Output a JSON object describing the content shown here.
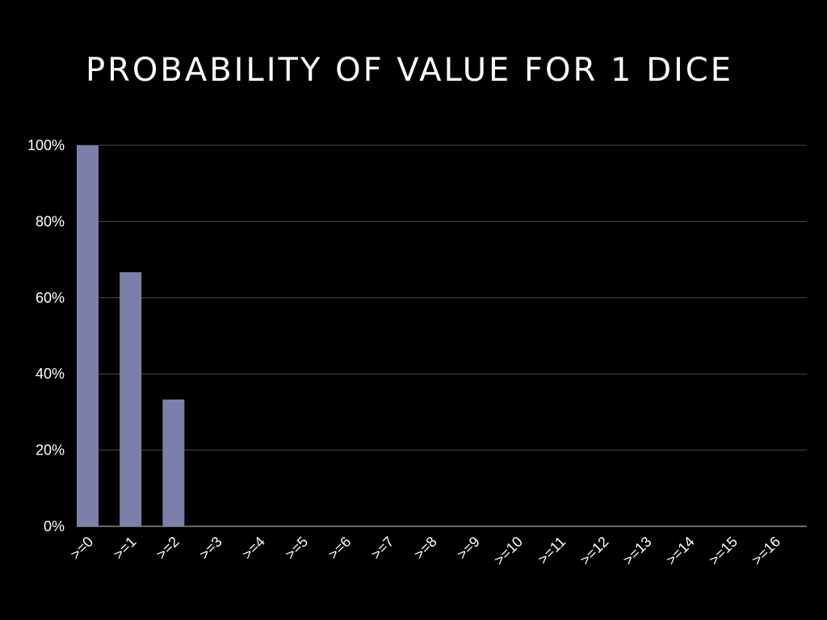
{
  "slide": {
    "title": "PROBABILITY OF VALUE FOR 1 DICE"
  },
  "chart_data": {
    "type": "bar",
    "title": "PROBABILITY OF VALUE FOR 1 DICE",
    "xlabel": "",
    "ylabel": "",
    "categories": [
      ">=0",
      ">=1",
      ">=2",
      ">=3",
      ">=4",
      ">=5",
      ">=6",
      ">=7",
      ">=8",
      ">=9",
      ">=10",
      ">=11",
      ">=12",
      ">=13",
      ">=14",
      ">=15",
      ">=16"
    ],
    "values": [
      1.0,
      0.667,
      0.333,
      0,
      0,
      0,
      0,
      0,
      0,
      0,
      0,
      0,
      0,
      0,
      0,
      0,
      0
    ],
    "y_ticks": [
      "0%",
      "20%",
      "40%",
      "60%",
      "80%",
      "100%"
    ],
    "ylim": [
      0,
      1
    ],
    "grid": true,
    "legend": "none",
    "colors": {
      "bar": "#7b80ab",
      "grid": "#4a4a4a",
      "axis": "#8a8a8a",
      "text": "#ffffff",
      "background": "#000000"
    }
  }
}
